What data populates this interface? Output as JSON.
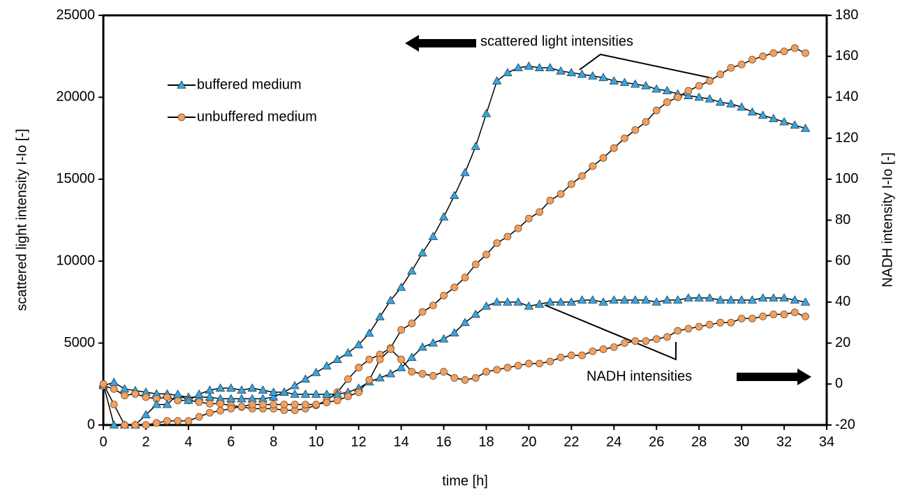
{
  "chart_data": {
    "type": "line",
    "xlabel": "time  [h]",
    "ylabel": "scattered light intensity I-Io  [-]",
    "y2label": "NADH intensity  I-Io   [-]",
    "annotations": [
      "scattered light intensities",
      "NADH intensities"
    ],
    "x": [
      0,
      0.5,
      1,
      1.5,
      2,
      2.5,
      3,
      3.5,
      4,
      4.5,
      5,
      5.5,
      6,
      6.5,
      7,
      7.5,
      8,
      8.5,
      9,
      9.5,
      10,
      10.5,
      11,
      11.5,
      12,
      12.5,
      13,
      13.5,
      14,
      14.5,
      15,
      15.5,
      16,
      16.5,
      17,
      17.5,
      18,
      18.5,
      19,
      19.5,
      20,
      20.5,
      21,
      21.5,
      22,
      22.5,
      23,
      23.5,
      24,
      24.5,
      25,
      25.5,
      26,
      26.5,
      27,
      27.5,
      28,
      28.5,
      29,
      29.5,
      30,
      30.5,
      31,
      31.5,
      32,
      32.5,
      33
    ],
    "xlim": [
      0,
      34
    ],
    "xticks": [
      0,
      2,
      4,
      6,
      8,
      10,
      12,
      14,
      16,
      18,
      20,
      22,
      24,
      26,
      28,
      30,
      32,
      34
    ],
    "ylim": [
      0,
      25000
    ],
    "yticks": [
      0,
      5000,
      10000,
      15000,
      20000,
      25000
    ],
    "y2lim": [
      -20,
      180
    ],
    "y2ticks": [
      -20,
      0,
      20,
      40,
      60,
      80,
      100,
      120,
      140,
      160,
      180
    ],
    "series": [
      {
        "name": "buffered medium",
        "color": "#3aa6d8",
        "marker": "triangle",
        "axis": "y",
        "values": [
          2400,
          2600,
          2200,
          2100,
          2000,
          1900,
          1900,
          1800,
          1700,
          1700,
          1700,
          1600,
          1600,
          1600,
          1600,
          1600,
          1700,
          2000,
          2400,
          2800,
          3200,
          3600,
          4000,
          4400,
          4900,
          5600,
          6600,
          7600,
          8400,
          9400,
          10500,
          11500,
          12700,
          14000,
          15400,
          17000,
          19000,
          21000,
          21500,
          21800,
          21900,
          21800,
          21800,
          21600,
          21500,
          21400,
          21300,
          21200,
          21000,
          20900,
          20800,
          20700,
          20500,
          20400,
          20200,
          20100,
          20000,
          19900,
          19700,
          19600,
          19400,
          19100,
          18900,
          18700,
          18500,
          18300,
          18100
        ]
      },
      {
        "name": "unbuffered medium",
        "color": "#f0a060",
        "marker": "circle",
        "axis": "y",
        "values": [
          2400,
          2200,
          1800,
          1900,
          1700,
          1600,
          1700,
          1500,
          1500,
          1400,
          1300,
          1300,
          1200,
          1100,
          1000,
          1000,
          1000,
          900,
          900,
          1000,
          1200,
          1500,
          2000,
          2800,
          3500,
          4000,
          4300,
          4700,
          5800,
          6200,
          6900,
          7300,
          7900,
          8400,
          9000,
          9800,
          10400,
          11100,
          11500,
          12000,
          12600,
          13000,
          13700,
          14100,
          14700,
          15200,
          15800,
          16300,
          16900,
          17500,
          18000,
          18500,
          19200,
          19700,
          20000,
          20400,
          20700,
          21000,
          21400,
          21800,
          22000,
          22300,
          22500,
          22700,
          22800,
          23000,
          22700
        ]
      },
      {
        "color": "#3aa6d8",
        "marker": "triangle",
        "axis": "y2",
        "values": [
          0,
          -20,
          -20,
          -20,
          -15,
          -10,
          -10,
          -5,
          -8,
          -5,
          -3,
          -2,
          -2,
          -3,
          -2,
          -3,
          -4,
          -4,
          -5,
          -5,
          -5,
          -5,
          -5,
          -4,
          -2,
          1,
          3,
          5,
          8,
          13,
          18,
          20,
          22,
          25,
          30,
          34,
          38,
          40,
          40,
          40,
          38,
          39,
          40,
          40,
          40,
          41,
          41,
          40,
          41,
          41,
          41,
          41,
          40,
          41,
          41,
          42,
          42,
          42,
          41,
          41,
          41,
          41,
          42,
          42,
          42,
          41,
          40
        ]
      },
      {
        "color": "#f0a060",
        "marker": "circle",
        "axis": "y2",
        "values": [
          0,
          -10,
          -20,
          -20,
          -20,
          -19,
          -18,
          -18,
          -18,
          -16,
          -14,
          -13,
          -12,
          -11,
          -10,
          -10,
          -10,
          -10,
          -10,
          -10,
          -10,
          -9,
          -8,
          -6,
          -4,
          2,
          12,
          17,
          12,
          6,
          5,
          4,
          6,
          3,
          2,
          3,
          6,
          7,
          8,
          9,
          10,
          10,
          11,
          13,
          14,
          14,
          16,
          17,
          18,
          20,
          21,
          21,
          22,
          23,
          26,
          27,
          28,
          29,
          30,
          30,
          32,
          32,
          33,
          34,
          34,
          35,
          33
        ]
      }
    ]
  }
}
